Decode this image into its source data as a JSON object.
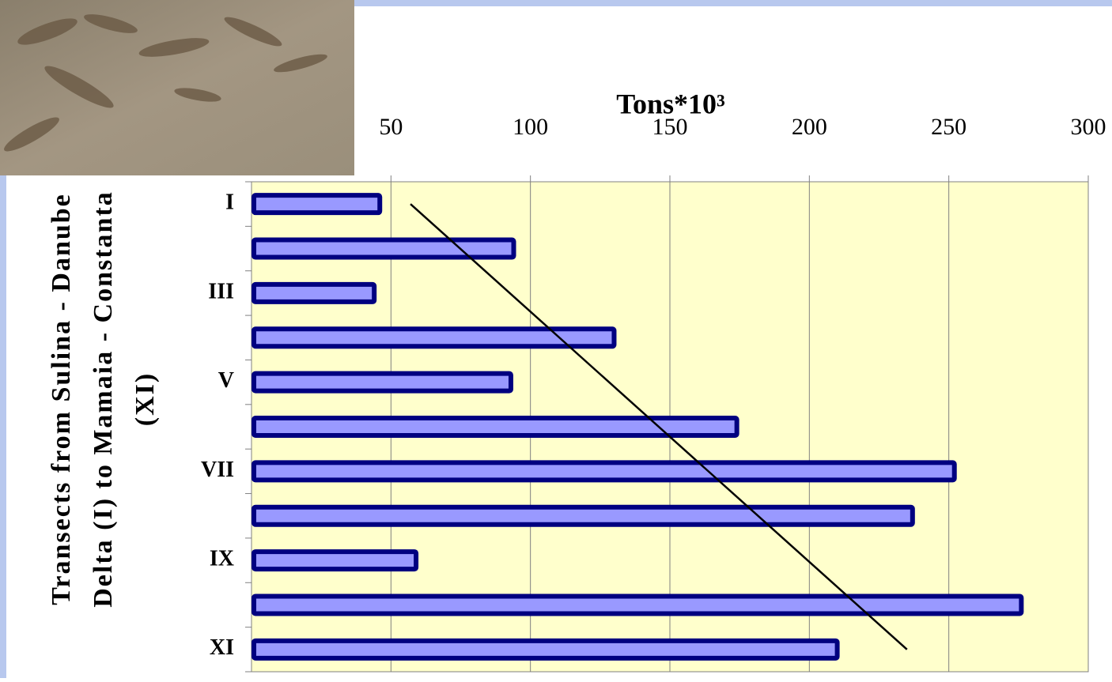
{
  "chart_data": {
    "type": "bar",
    "orientation": "horizontal",
    "x_label": "Tons*10³",
    "y_label": [
      "Transects from Sulina - Danube",
      "Delta (I) to Mamaia - Constanta",
      "(XI)"
    ],
    "categories": [
      "I",
      null,
      "III",
      null,
      "V",
      null,
      "VII",
      null,
      "IX",
      null,
      "XI"
    ],
    "values": [
      46,
      94,
      44,
      130,
      93,
      174,
      252,
      237,
      59,
      276,
      210
    ],
    "trendline": {
      "start": 57,
      "end": 235
    },
    "xlim": [
      0,
      300
    ],
    "xticks": [
      50,
      100,
      150,
      200,
      250,
      300
    ],
    "grid": true,
    "color": "#9999ff",
    "edge_color": "#000080",
    "plot_background": "#ffffcc"
  }
}
